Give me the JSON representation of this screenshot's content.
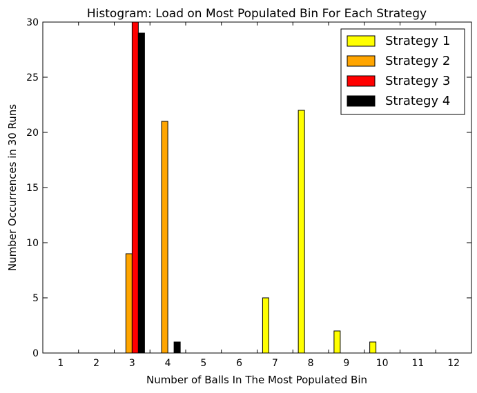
{
  "chart_data": {
    "type": "bar",
    "title": "Histogram: Load on Most Populated Bin For Each Strategy",
    "xlabel": "Number of Balls In The Most Populated Bin",
    "ylabel": "Number Occurrences in 30 Runs",
    "categories": [
      "1",
      "2",
      "3",
      "4",
      "5",
      "6",
      "7",
      "8",
      "9",
      "10",
      "11",
      "12"
    ],
    "ylim": [
      0,
      30
    ],
    "yticks": [
      "0",
      "5",
      "10",
      "15",
      "20",
      "25",
      "30"
    ],
    "grid": false,
    "legend_position": "top-right",
    "series": [
      {
        "name": "Strategy 1",
        "color": "#ffff00",
        "values": [
          0,
          0,
          0,
          0,
          0,
          0,
          5,
          22,
          2,
          1,
          0,
          0
        ]
      },
      {
        "name": "Strategy 2",
        "color": "#ffa500",
        "values": [
          0,
          0,
          9,
          21,
          0,
          0,
          0,
          0,
          0,
          0,
          0,
          0
        ]
      },
      {
        "name": "Strategy 3",
        "color": "#ff0000",
        "values": [
          0,
          0,
          30,
          0,
          0,
          0,
          0,
          0,
          0,
          0,
          0,
          0
        ]
      },
      {
        "name": "Strategy 4",
        "color": "#000000",
        "values": [
          0,
          0,
          29,
          1,
          0,
          0,
          0,
          0,
          0,
          0,
          0,
          0
        ]
      }
    ]
  }
}
